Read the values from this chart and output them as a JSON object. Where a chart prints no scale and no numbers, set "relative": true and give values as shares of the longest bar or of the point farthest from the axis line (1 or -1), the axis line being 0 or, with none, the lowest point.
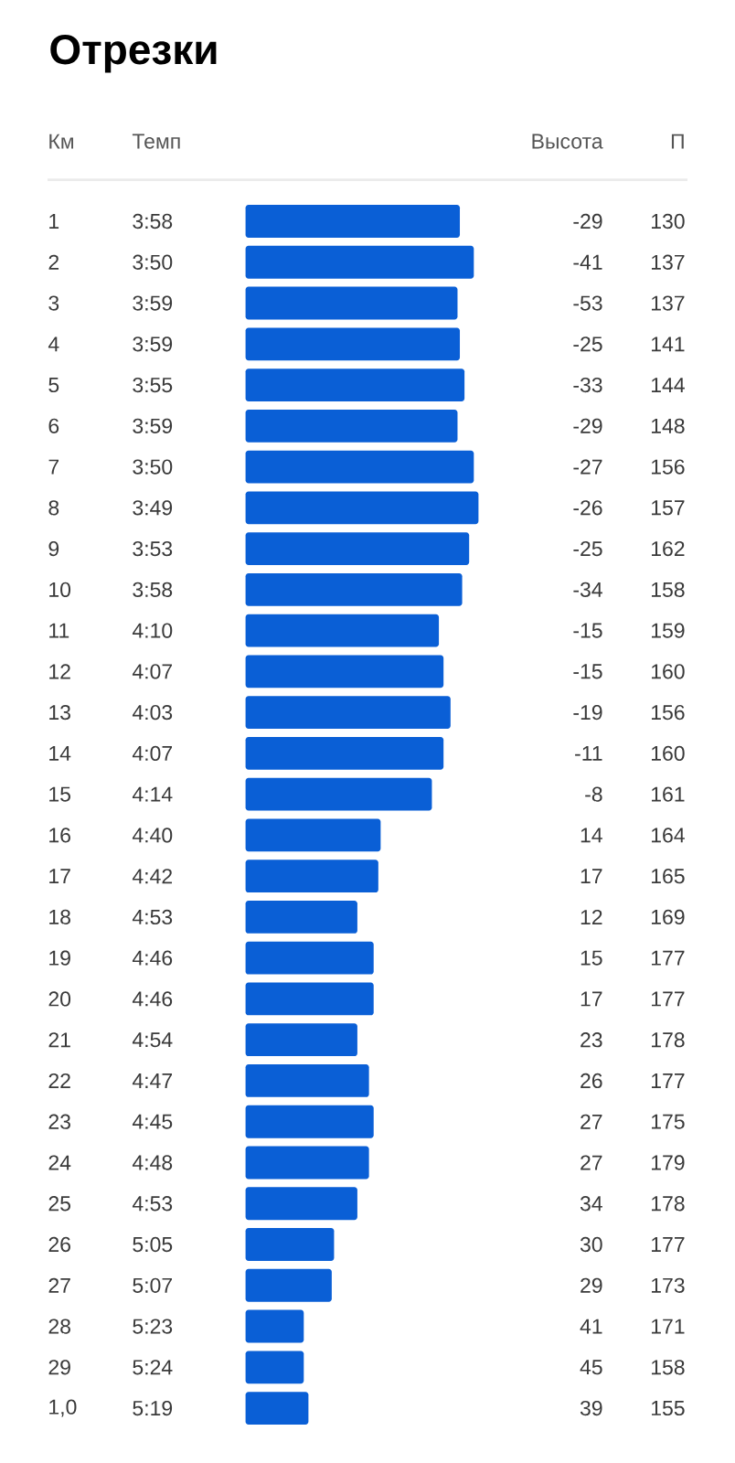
{
  "chart_data": [
    {
      "type": "bar",
      "orientation": "horizontal",
      "relative": true,
      "title": "Отрезки",
      "ylabel": "Км",
      "color": "#0a5fd6",
      "categories": [
        "1",
        "2",
        "3",
        "4",
        "5",
        "6",
        "7",
        "8",
        "9",
        "10",
        "11",
        "12",
        "13",
        "14",
        "15",
        "16",
        "17",
        "18",
        "19",
        "20",
        "21",
        "22",
        "23",
        "24",
        "25",
        "26",
        "27",
        "28",
        "29",
        "1,0"
      ],
      "values": [
        0.92,
        0.98,
        0.91,
        0.92,
        0.94,
        0.91,
        0.98,
        1,
        0.96,
        0.93,
        0.83,
        0.85,
        0.88,
        0.85,
        0.8,
        0.58,
        0.57,
        0.48,
        0.55,
        0.55,
        0.48,
        0.53,
        0.55,
        0.53,
        0.48,
        0.38,
        0.37,
        0.25,
        0.25,
        0.27
      ]
    },
    {
      "type": "other",
      "title": "Темп",
      "values": [
        3.9667,
        3.8333,
        3.9833,
        3.9833,
        3.9167,
        3.9833,
        3.8333,
        3.8167,
        3.8833,
        3.9667,
        4.1667,
        4.1167,
        4.05,
        4.1167,
        4.2333,
        4.6667,
        4.7,
        4.8833,
        4.7667,
        4.7667,
        4.9,
        4.7833,
        4.75,
        4.8,
        4.8833,
        5.0833,
        5.1167,
        5.3833,
        5.4,
        5.3167
      ],
      "value_labels": [
        "3:58",
        "3:50",
        "3:59",
        "3:59",
        "3:55",
        "3:59",
        "3:50",
        "3:49",
        "3:53",
        "3:58",
        "4:10",
        "4:07",
        "4:03",
        "4:07",
        "4:14",
        "4:40",
        "4:42",
        "4:53",
        "4:46",
        "4:46",
        "4:54",
        "4:47",
        "4:45",
        "4:48",
        "4:53",
        "5:05",
        "5:07",
        "5:23",
        "5:24",
        "5:19"
      ]
    },
    {
      "type": "other",
      "title": "Высота",
      "data_labels": true,
      "values": [
        -29,
        -41,
        -53,
        -25,
        -33,
        -29,
        -27,
        -26,
        -25,
        -34,
        -15,
        -15,
        -19,
        -11,
        -8,
        14,
        17,
        12,
        15,
        17,
        23,
        26,
        27,
        27,
        34,
        30,
        29,
        41,
        45,
        39
      ]
    },
    {
      "type": "other",
      "title": "П",
      "data_labels": true,
      "values": [
        130,
        137,
        137,
        141,
        144,
        148,
        156,
        157,
        162,
        158,
        159,
        160,
        156,
        160,
        161,
        164,
        165,
        169,
        177,
        177,
        178,
        177,
        175,
        179,
        178,
        177,
        173,
        171,
        158,
        155
      ]
    }
  ]
}
